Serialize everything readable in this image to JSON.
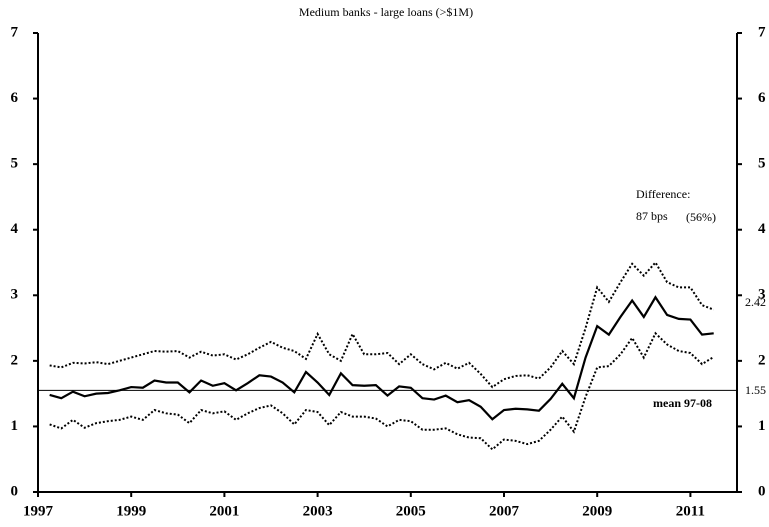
{
  "chart_data": {
    "type": "line",
    "title": "Medium banks - large loans (>$1M)",
    "x": [
      1997.25,
      1997.5,
      1997.75,
      1998,
      1998.25,
      1998.5,
      1998.75,
      1999,
      1999.25,
      1999.5,
      1999.75,
      2000,
      2000.25,
      2000.5,
      2000.75,
      2001,
      2001.25,
      2001.5,
      2001.75,
      2002,
      2002.25,
      2002.5,
      2002.75,
      2003,
      2003.25,
      2003.5,
      2003.75,
      2004,
      2004.25,
      2004.5,
      2004.75,
      2005,
      2005.25,
      2005.5,
      2005.75,
      2006,
      2006.25,
      2006.5,
      2006.75,
      2007,
      2007.25,
      2007.5,
      2007.75,
      2008,
      2008.25,
      2008.5,
      2008.75,
      2009,
      2009.25,
      2009.5,
      2009.75,
      2010,
      2010.25,
      2010.5,
      2010.75,
      2011,
      2011.25,
      2011.5
    ],
    "series": [
      {
        "color": "#000000",
        "style": "dotted",
        "values": [
          1.93,
          1.9,
          1.97,
          1.96,
          1.98,
          1.95,
          2.0,
          2.05,
          2.1,
          2.15,
          2.14,
          2.15,
          2.05,
          2.14,
          2.08,
          2.1,
          2.02,
          2.1,
          2.2,
          2.29,
          2.2,
          2.15,
          2.03,
          2.41,
          2.1,
          2.0,
          2.41,
          2.1,
          2.1,
          2.12,
          1.95,
          2.1,
          1.95,
          1.87,
          1.97,
          1.88,
          1.97,
          1.8,
          1.6,
          1.72,
          1.77,
          1.78,
          1.73,
          1.9,
          2.15,
          1.95,
          2.5,
          3.12,
          2.9,
          3.2,
          3.48,
          3.3,
          3.5,
          3.2,
          3.12,
          3.12,
          2.85,
          2.78
        ]
      },
      {
        "color": "#000000",
        "style": "solid",
        "values": [
          1.48,
          1.43,
          1.53,
          1.46,
          1.5,
          1.51,
          1.55,
          1.6,
          1.59,
          1.7,
          1.67,
          1.67,
          1.52,
          1.7,
          1.62,
          1.66,
          1.55,
          1.66,
          1.78,
          1.76,
          1.67,
          1.52,
          1.83,
          1.67,
          1.48,
          1.81,
          1.63,
          1.62,
          1.63,
          1.47,
          1.61,
          1.59,
          1.43,
          1.41,
          1.47,
          1.37,
          1.4,
          1.3,
          1.11,
          1.25,
          1.27,
          1.26,
          1.24,
          1.42,
          1.65,
          1.43,
          2.05,
          2.53,
          2.4,
          2.67,
          2.92,
          2.67,
          2.97,
          2.7,
          2.64,
          2.63,
          2.4,
          2.42
        ]
      },
      {
        "color": "#000000",
        "style": "dotted",
        "values": [
          1.03,
          0.97,
          1.1,
          0.98,
          1.05,
          1.08,
          1.1,
          1.15,
          1.1,
          1.25,
          1.2,
          1.18,
          1.05,
          1.25,
          1.2,
          1.23,
          1.1,
          1.2,
          1.28,
          1.32,
          1.2,
          1.03,
          1.25,
          1.22,
          1.02,
          1.22,
          1.15,
          1.15,
          1.12,
          1.0,
          1.1,
          1.08,
          0.95,
          0.95,
          0.97,
          0.88,
          0.83,
          0.82,
          0.65,
          0.8,
          0.78,
          0.73,
          0.78,
          0.95,
          1.15,
          0.92,
          1.45,
          1.9,
          1.92,
          2.1,
          2.35,
          2.05,
          2.42,
          2.25,
          2.15,
          2.12,
          1.95,
          2.06
        ]
      }
    ],
    "reference_line": {
      "value": 1.55,
      "label": "mean 97-08"
    },
    "annotations": [
      "Difference:",
      "87 bps",
      "(56%)"
    ],
    "xlim": [
      1997,
      2012
    ],
    "xticks": [
      1997,
      1999,
      2001,
      2003,
      2005,
      2007,
      2009,
      2011
    ],
    "ylim": [
      0,
      7
    ],
    "yticks": [
      0,
      1,
      2,
      3,
      4,
      5,
      6,
      7
    ],
    "y2lim": [
      0,
      7
    ],
    "y2ticks": [
      0,
      1,
      2,
      3,
      4,
      5,
      6,
      7
    ]
  }
}
